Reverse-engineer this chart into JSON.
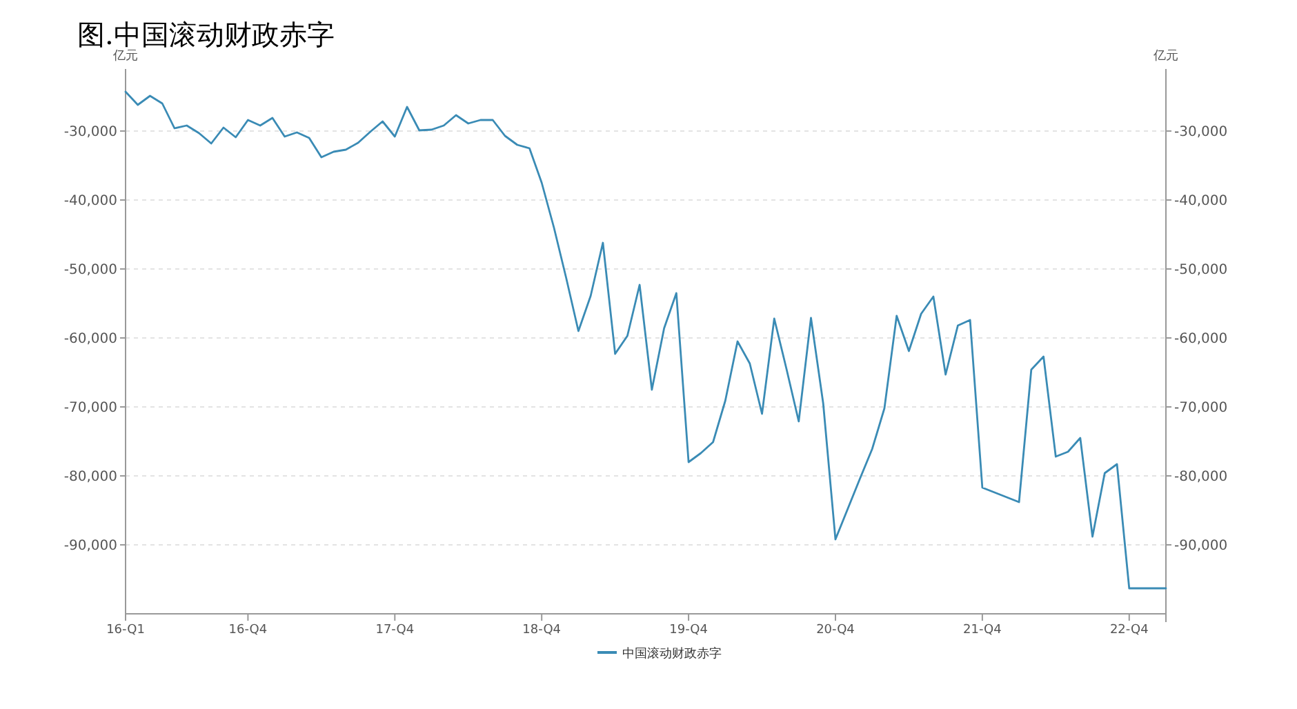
{
  "chart_data": {
    "type": "line",
    "title": "图.中国滚动财政赤字",
    "ylabel": "亿元",
    "y2label": "亿元",
    "categories": [
      "16-Q1",
      null,
      null,
      null,
      null,
      null,
      null,
      null,
      null,
      null,
      "16-Q4",
      null,
      null,
      null,
      null,
      null,
      null,
      null,
      null,
      null,
      null,
      null,
      "17-Q4",
      null,
      null,
      null,
      null,
      null,
      null,
      null,
      null,
      null,
      null,
      null,
      "18-Q4",
      null,
      null,
      null,
      null,
      null,
      null,
      null,
      null,
      null,
      null,
      null,
      "19-Q4",
      null,
      null,
      null,
      null,
      null,
      null,
      null,
      null,
      null,
      null,
      null,
      "20-Q4",
      null,
      null,
      null,
      null,
      null,
      null,
      null,
      null,
      null,
      null,
      null,
      "21-Q4",
      null,
      null,
      null,
      null,
      null,
      null,
      null,
      null,
      null,
      null,
      null,
      "22-Q4",
      null,
      null,
      null
    ],
    "series": [
      {
        "name": "中国滚动财政赤字",
        "color": "#3a8bb5",
        "values": [
          -24300,
          -26200,
          -24900,
          -26000,
          -29600,
          -29200,
          -30300,
          -31800,
          -29500,
          -30900,
          -28400,
          -29200,
          -28100,
          -30800,
          -30200,
          -31000,
          -33800,
          -33000,
          -32700,
          -31700,
          -30100,
          -28600,
          -30800,
          -26500,
          -29900,
          -29800,
          -29200,
          -27700,
          -28900,
          -28400,
          -28400,
          -30700,
          -32000,
          -32500,
          -37500,
          -44000,
          -51300,
          -59000,
          -53900,
          -46200,
          -62300,
          -59700,
          -52300,
          -67500,
          -58600,
          -53500,
          -78000,
          -76700,
          -75100,
          -69100,
          -60500,
          -63700,
          -71000,
          -57200,
          -64500,
          -72100,
          -57100,
          -69500,
          -89200,
          -84800,
          -80400,
          -76100,
          -70200,
          -56800,
          -61900,
          -56500,
          -54000,
          -65300,
          -58200,
          -57400,
          -81700,
          -82400,
          -83100,
          -83800,
          -64600,
          -62700,
          -77200,
          -76500,
          -74500,
          -88800,
          -79600,
          -78300,
          -96300,
          -96300,
          -96300,
          -96300
        ]
      }
    ],
    "ylim": [
      -100000,
      -21000
    ],
    "yticks": [
      {
        "value": -30000,
        "label": "-30,000"
      },
      {
        "value": -40000,
        "label": "-40,000"
      },
      {
        "value": -50000,
        "label": "-50,000"
      },
      {
        "value": -60000,
        "label": "-60,000"
      },
      {
        "value": -70000,
        "label": "-70,000"
      },
      {
        "value": -80000,
        "label": "-80,000"
      },
      {
        "value": -90000,
        "label": "-90,000"
      }
    ],
    "y2lim": [
      -100000,
      -21000
    ],
    "y2ticks": [
      {
        "value": -30000,
        "label": "-30,000"
      },
      {
        "value": -40000,
        "label": "-40,000"
      },
      {
        "value": -50000,
        "label": "-50,000"
      },
      {
        "value": -60000,
        "label": "-60,000"
      },
      {
        "value": -70000,
        "label": "-70,000"
      },
      {
        "value": -80000,
        "label": "-80,000"
      },
      {
        "value": -90000,
        "label": "-90,000"
      }
    ],
    "grid": "y",
    "legend": "bottom",
    "marker": "none",
    "line_style": "solid"
  }
}
